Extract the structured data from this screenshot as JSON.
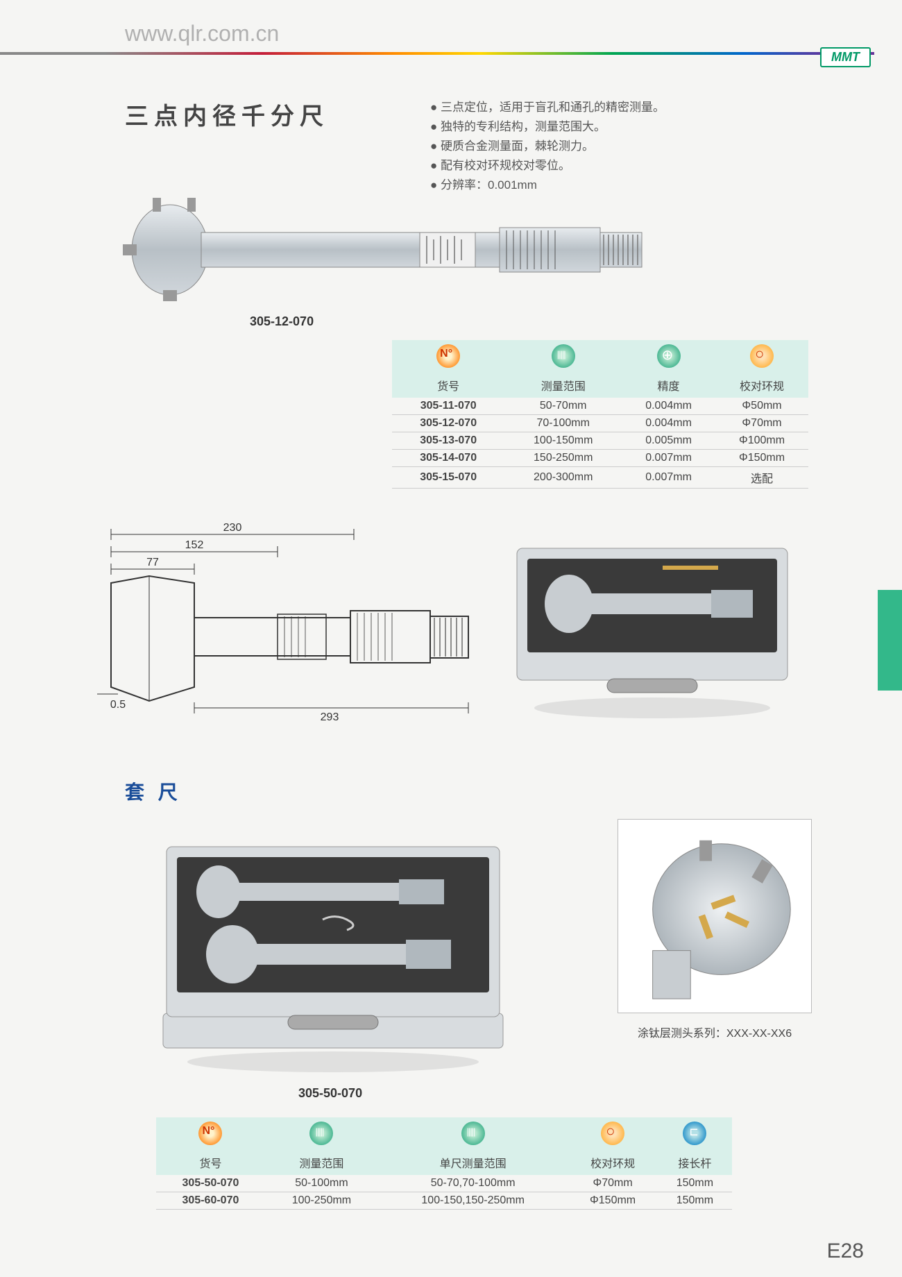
{
  "header": {
    "url": "www.qlr.com.cn",
    "badge": "MMT"
  },
  "title": "三点内径千分尺",
  "features": [
    "三点定位，适用于盲孔和通孔的精密测量。",
    "独特的专利结构，测量范围大。",
    "硬质合金测量面，棘轮测力。",
    "配有校对环规校对零位。",
    "分辨率：0.001mm"
  ],
  "product1_label": "305-12-070",
  "table1": {
    "headers": [
      "货号",
      "测量范围",
      "精度",
      "校对环规"
    ],
    "rows": [
      [
        "305-11-070",
        "50-70mm",
        "0.004mm",
        "Φ50mm"
      ],
      [
        "305-12-070",
        "70-100mm",
        "0.004mm",
        "Φ70mm"
      ],
      [
        "305-13-070",
        "100-150mm",
        "0.005mm",
        "Φ100mm"
      ],
      [
        "305-14-070",
        "150-250mm",
        "0.007mm",
        "Φ150mm"
      ],
      [
        "305-15-070",
        "200-300mm",
        "0.007mm",
        "选配"
      ]
    ]
  },
  "drawing": {
    "dims": {
      "d230": "230",
      "d152": "152",
      "d77": "77",
      "d05": "0.5",
      "d293": "293"
    }
  },
  "section2_title": "套 尺",
  "detail_caption": "涂钛层测头系列：XXX-XX-XX6",
  "product2_label": "305-50-070",
  "table2": {
    "headers": [
      "货号",
      "测量范围",
      "单尺测量范围",
      "校对环规",
      "接长杆"
    ],
    "rows": [
      [
        "305-50-070",
        "50-100mm",
        "50-70,70-100mm",
        "Φ70mm",
        "150mm"
      ],
      [
        "305-60-070",
        "100-250mm",
        "100-150,150-250mm",
        "Φ150mm",
        "150mm"
      ]
    ]
  },
  "page_number": "E28",
  "colors": {
    "header_band": "#d9f0ea",
    "green_tab": "#33b88a",
    "title_blue": "#1a4d99"
  }
}
